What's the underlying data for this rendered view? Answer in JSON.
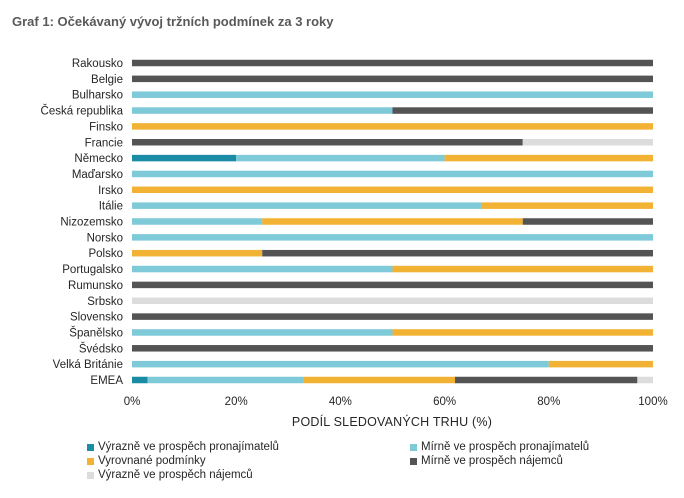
{
  "title": "Graf 1: Očekávaný vývoj tržních podmínek za 3 roky",
  "chart_data": {
    "type": "bar",
    "orientation": "horizontal",
    "stacked": "percent",
    "categories": [
      "Rakousko",
      "Belgie",
      "Bulharsko",
      "Česká republika",
      "Finsko",
      "Francie",
      "Německo",
      "Maďarsko",
      "Irsko",
      "Itálie",
      "Nizozemsko",
      "Norsko",
      "Polsko",
      "Portugalsko",
      "Rumunsko",
      "Srbsko",
      "Slovensko",
      "Španělsko",
      "Švédsko",
      "Velká Británie",
      "EMEA"
    ],
    "series": [
      {
        "name": "Výrazně ve prospěch pronajímatelů",
        "color": "#1a8ca6",
        "values": [
          0,
          0,
          0,
          0,
          0,
          0,
          20,
          0,
          0,
          0,
          0,
          0,
          0,
          0,
          0,
          0,
          0,
          0,
          0,
          0,
          3
        ]
      },
      {
        "name": "Mírně ve prospěch pronajímatelů",
        "color": "#7ecad8",
        "values": [
          0,
          0,
          100,
          50,
          0,
          0,
          40,
          100,
          0,
          67,
          25,
          100,
          0,
          50,
          0,
          0,
          0,
          50,
          0,
          80,
          30
        ]
      },
      {
        "name": "Vyrovnané podmínky",
        "color": "#f2b233",
        "values": [
          0,
          0,
          0,
          0,
          100,
          0,
          40,
          0,
          100,
          33,
          50,
          0,
          25,
          50,
          0,
          0,
          0,
          50,
          0,
          20,
          29
        ]
      },
      {
        "name": "Mírně ve prospěch nájemců",
        "color": "#545454",
        "values": [
          100,
          100,
          0,
          50,
          0,
          75,
          0,
          0,
          0,
          0,
          25,
          0,
          75,
          0,
          100,
          0,
          100,
          0,
          100,
          0,
          35
        ]
      },
      {
        "name": "Výrazně ve prospěch nájemců",
        "color": "#dcdcdc",
        "values": [
          0,
          0,
          0,
          0,
          0,
          25,
          0,
          0,
          0,
          0,
          0,
          0,
          0,
          0,
          0,
          100,
          0,
          0,
          0,
          0,
          3
        ]
      }
    ],
    "xlabel": "PODÍL SLEDOVANÝCH TRHU (%)",
    "xlim": [
      0,
      100
    ],
    "xticks": [
      "0%",
      "20%",
      "40%",
      "60%",
      "80%",
      "100%"
    ],
    "legend_position": "bottom",
    "grid": false
  }
}
